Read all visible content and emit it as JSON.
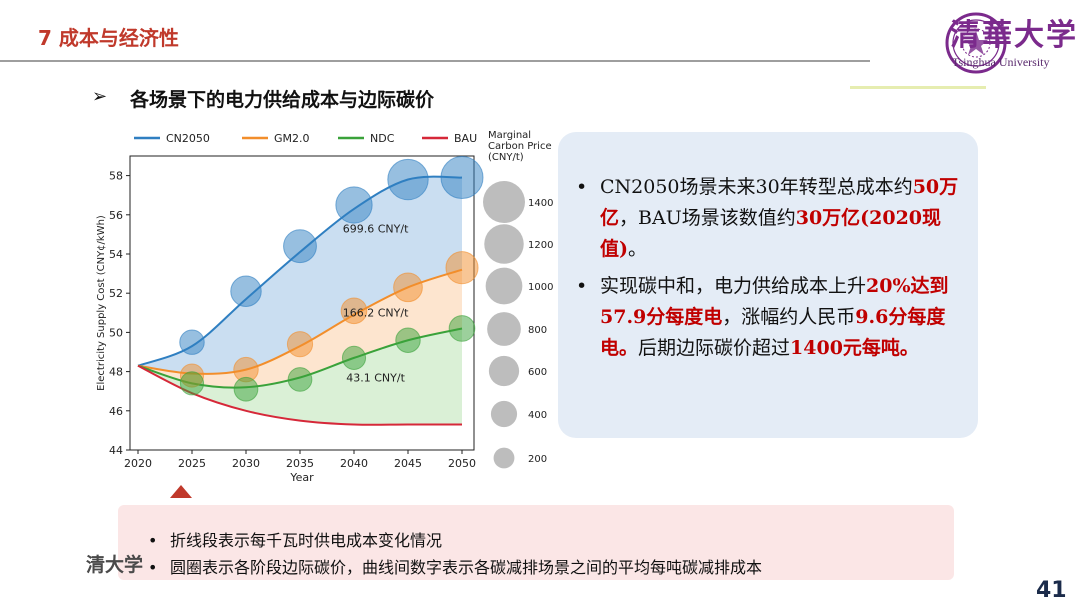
{
  "header": {
    "section_title": "7 成本与经济性",
    "logo_cn": "清華大学",
    "logo_en": "Tsinghua University"
  },
  "subtitle": {
    "arrow": "➢",
    "text": "各场景下的电力供给成本与边际碳价"
  },
  "chart_data": {
    "type": "line",
    "xlabel": "Year",
    "ylabel": "Electricity Supply Cost (CNY¢/kWh)",
    "x": [
      2020,
      2025,
      2030,
      2035,
      2040,
      2045,
      2050
    ],
    "ylim": [
      44,
      59
    ],
    "yticks": [
      44,
      46,
      48,
      50,
      52,
      54,
      56,
      58
    ],
    "grid": false,
    "legend_position": "top",
    "series": [
      {
        "name": "CN2050",
        "color": "#2f7fc1",
        "values": [
          48.3,
          49.3,
          51.7,
          54.1,
          56.3,
          57.8,
          57.9
        ],
        "bubbles": [
          null,
          49.5,
          52.1,
          54.4,
          56.5,
          57.8,
          57.9
        ],
        "prices": [
          null,
          250,
          550,
          700,
          950,
          1300,
          1450
        ]
      },
      {
        "name": "GM2.0",
        "color": "#f28e2b",
        "values": [
          48.3,
          47.9,
          48.1,
          49.3,
          50.9,
          52.3,
          53.2
        ],
        "bubbles": [
          null,
          47.8,
          48.1,
          49.4,
          51.1,
          52.3,
          53.3
        ],
        "prices": [
          null,
          200,
          250,
          280,
          300,
          450,
          650
        ]
      },
      {
        "name": "NDC",
        "color": "#3aa23a",
        "values": [
          48.3,
          47.4,
          47.2,
          47.7,
          48.7,
          49.6,
          50.2
        ],
        "bubbles": [
          null,
          47.4,
          47.1,
          47.6,
          48.7,
          49.6,
          50.2
        ],
        "prices": [
          null,
          200,
          220,
          220,
          200,
          250,
          300
        ]
      },
      {
        "name": "BAU",
        "color": "#d62839",
        "values": [
          48.3,
          46.9,
          46.0,
          45.5,
          45.3,
          45.3,
          45.3
        ]
      }
    ],
    "annotations": [
      {
        "text": "699.6 CNY/t",
        "x": 2042,
        "y": 55.1
      },
      {
        "text": "166.2 CNY/t",
        "x": 2042,
        "y": 50.8
      },
      {
        "text": "43.1 CNY/t",
        "x": 2042,
        "y": 47.5
      }
    ],
    "size_legend": {
      "title_lines": [
        "Marginal",
        "Carbon Price",
        "(CNY/t)"
      ],
      "values": [
        1400,
        1200,
        1000,
        800,
        600,
        400,
        200
      ]
    }
  },
  "summary": {
    "bullets": [
      {
        "parts": [
          {
            "t": "CN2050场景未来30年转型总成本约",
            "red": false
          },
          {
            "t": "50万亿",
            "red": true
          },
          {
            "t": "，BAU场景该数值约",
            "red": false
          },
          {
            "t": "30万亿(2020现值)",
            "red": true
          },
          {
            "t": "。",
            "red": false
          }
        ]
      },
      {
        "parts": [
          {
            "t": "实现碳中和，电力供给成本上升",
            "red": false
          },
          {
            "t": "20%达到57.9分每度电",
            "red": true
          },
          {
            "t": "，涨幅约人民币",
            "red": false
          },
          {
            "t": "9.6分每度电。",
            "red": true
          },
          {
            "t": "后期边际碳价超过",
            "red": false
          },
          {
            "t": "1400元每吨。",
            "red": true
          }
        ]
      }
    ],
    "colors": {
      "red": "#c00000",
      "box_bg": "#e4ecf6"
    }
  },
  "notes": [
    "折线段表示每千瓦时供电成本变化情况",
    "圆圈表示各阶段边际碳价，曲线间数字表示各碳减排场景之间的平均每吨碳减排成本"
  ],
  "footer": {
    "mark": "清大学",
    "page_number": "41"
  }
}
